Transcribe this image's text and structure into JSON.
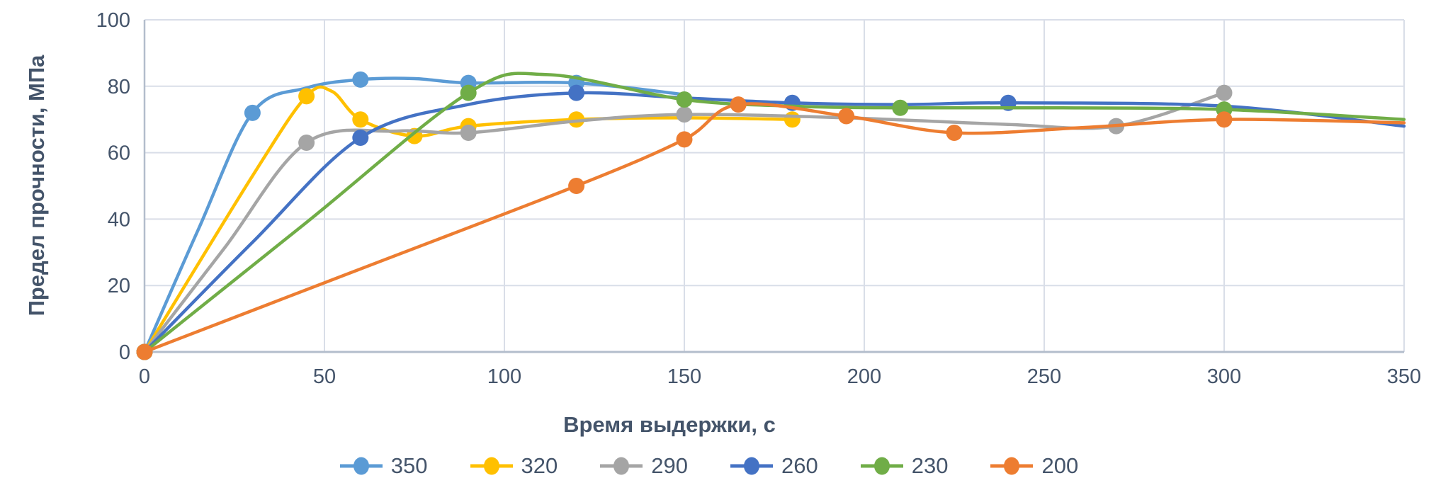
{
  "chart_data": {
    "type": "line",
    "title": "",
    "x_axis": {
      "title": "Время выдержки, с",
      "min": 0,
      "max": 350,
      "tick_step": 50,
      "ticks": [
        0,
        50,
        100,
        150,
        200,
        250,
        300,
        350
      ]
    },
    "y_axis": {
      "title": "Предел прочности, МПа",
      "min": 0,
      "max": 100,
      "tick_step": 20,
      "ticks": [
        0,
        20,
        40,
        60,
        80,
        100
      ]
    },
    "grid": true,
    "legend_position": "bottom",
    "series": [
      {
        "name": "350",
        "color": "#5B9BD5",
        "markers": [
          [
            0,
            0
          ],
          [
            30,
            72
          ],
          [
            60,
            82
          ],
          [
            90,
            81
          ],
          [
            120,
            81
          ]
        ],
        "line": [
          [
            0,
            0
          ],
          [
            15,
            37
          ],
          [
            30,
            72
          ],
          [
            45,
            79.5
          ],
          [
            60,
            82
          ],
          [
            75,
            82.3
          ],
          [
            90,
            81
          ],
          [
            120,
            81
          ],
          [
            150,
            77.5
          ]
        ]
      },
      {
        "name": "320",
        "color": "#FFC000",
        "markers": [
          [
            0,
            0
          ],
          [
            45,
            77
          ],
          [
            60,
            70
          ],
          [
            75,
            65
          ],
          [
            90,
            68
          ],
          [
            120,
            70
          ],
          [
            180,
            70
          ]
        ],
        "line": [
          [
            0,
            0
          ],
          [
            30,
            53
          ],
          [
            45,
            77
          ],
          [
            52,
            78.5
          ],
          [
            60,
            70
          ],
          [
            75,
            65
          ],
          [
            90,
            68
          ],
          [
            120,
            70
          ],
          [
            150,
            70.5
          ],
          [
            180,
            70
          ]
        ]
      },
      {
        "name": "290",
        "color": "#A5A5A5",
        "markers": [
          [
            0,
            0
          ],
          [
            45,
            63
          ],
          [
            90,
            66
          ],
          [
            150,
            71.5
          ],
          [
            270,
            68
          ],
          [
            300,
            78
          ]
        ],
        "line": [
          [
            0,
            0
          ],
          [
            22,
            31
          ],
          [
            45,
            63
          ],
          [
            70,
            66.5
          ],
          [
            90,
            66
          ],
          [
            120,
            69.5
          ],
          [
            150,
            71.5
          ],
          [
            195,
            70.5
          ],
          [
            240,
            68.5
          ],
          [
            270,
            68
          ],
          [
            300,
            78
          ]
        ]
      },
      {
        "name": "260",
        "color": "#4472C4",
        "markers": [
          [
            0,
            0
          ],
          [
            60,
            64.5
          ],
          [
            120,
            78
          ],
          [
            180,
            75
          ],
          [
            240,
            75
          ]
        ],
        "line": [
          [
            0,
            0
          ],
          [
            30,
            33
          ],
          [
            60,
            64.5
          ],
          [
            90,
            74.5
          ],
          [
            120,
            78
          ],
          [
            150,
            76.5
          ],
          [
            180,
            75
          ],
          [
            210,
            74.5
          ],
          [
            240,
            75
          ],
          [
            300,
            74
          ],
          [
            350,
            68
          ]
        ]
      },
      {
        "name": "230",
        "color": "#70AD47",
        "markers": [
          [
            0,
            0
          ],
          [
            90,
            78
          ],
          [
            150,
            76
          ],
          [
            210,
            73.5
          ],
          [
            300,
            73
          ]
        ],
        "line": [
          [
            0,
            0
          ],
          [
            45,
            39
          ],
          [
            90,
            78
          ],
          [
            112,
            83.5
          ],
          [
            150,
            76
          ],
          [
            180,
            74
          ],
          [
            210,
            73.5
          ],
          [
            255,
            73.5
          ],
          [
            300,
            73
          ],
          [
            350,
            70
          ]
        ]
      },
      {
        "name": "200",
        "color": "#ED7D31",
        "markers": [
          [
            0,
            0
          ],
          [
            120,
            50
          ],
          [
            150,
            64
          ],
          [
            165,
            74.5
          ],
          [
            195,
            71
          ],
          [
            225,
            66
          ],
          [
            300,
            70
          ]
        ],
        "line": [
          [
            0,
            0
          ],
          [
            60,
            25
          ],
          [
            120,
            50
          ],
          [
            150,
            64
          ],
          [
            165,
            74.5
          ],
          [
            195,
            71
          ],
          [
            225,
            66
          ],
          [
            260,
            67.5
          ],
          [
            300,
            70
          ],
          [
            350,
            69
          ]
        ]
      }
    ],
    "styles": {
      "text_color": "#44546A",
      "grid_color": "#D9DEE8",
      "axis_color": "#B3BDCC",
      "background": "#FFFFFF"
    }
  }
}
